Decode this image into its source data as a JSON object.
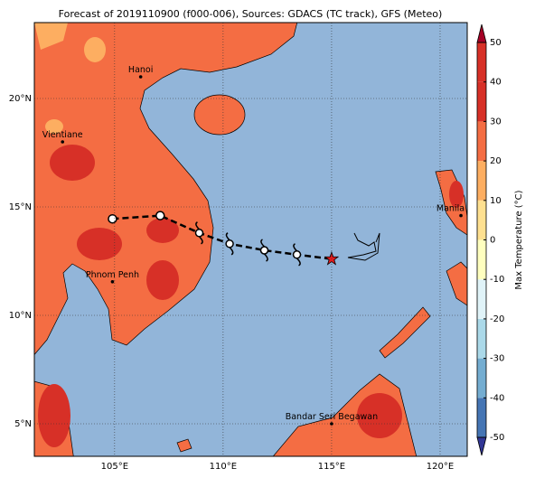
{
  "title": "Forecast of 2019110900 (f000-006), Sources: GDACS (TC track), GFS (Meteo)",
  "map": {
    "xlim": [
      101.3,
      121.25
    ],
    "ylim": [
      3.5,
      23.5
    ],
    "xticks": [
      {
        "value": 105,
        "label": "105°E"
      },
      {
        "value": 110,
        "label": "110°E"
      },
      {
        "value": 115,
        "label": "115°E"
      },
      {
        "value": 120,
        "label": "120°E"
      }
    ],
    "yticks": [
      {
        "value": 5,
        "label": "5°N"
      },
      {
        "value": 10,
        "label": "10°N"
      },
      {
        "value": 15,
        "label": "15°N"
      },
      {
        "value": 20,
        "label": "20°N"
      }
    ],
    "cities": [
      {
        "name": "Hanoi",
        "lon": 106.2,
        "lat": 21.0
      },
      {
        "name": "Vientiane",
        "lon": 102.6,
        "lat": 18.0
      },
      {
        "name": "Phnom Penh",
        "lon": 104.9,
        "lat": 11.55
      },
      {
        "name": "Manila",
        "lon": 120.96,
        "lat": 14.6
      },
      {
        "name": "Bandar Seri Begawan",
        "lon": 115.0,
        "lat": 5.0
      }
    ],
    "track": {
      "lon": [
        104.9,
        107.1,
        108.9,
        110.3,
        111.9,
        113.4,
        115.0
      ],
      "lat": [
        14.45,
        14.6,
        13.8,
        13.3,
        13.0,
        12.8,
        12.6
      ]
    }
  },
  "colorbar": {
    "label": "Max Temperature (°C)",
    "ticks": [
      -50,
      -40,
      -30,
      -20,
      -10,
      0,
      10,
      20,
      30,
      40,
      50
    ],
    "levels": [
      -50,
      -40,
      -30,
      -20,
      -10,
      0,
      10,
      20,
      30,
      40,
      50
    ],
    "colors": [
      "#313695",
      "#4575b4",
      "#74add1",
      "#abd9e9",
      "#e0f3f8",
      "#ffffbf",
      "#fee090",
      "#fdae61",
      "#f46d43",
      "#d73027",
      "#a50026"
    ]
  }
}
